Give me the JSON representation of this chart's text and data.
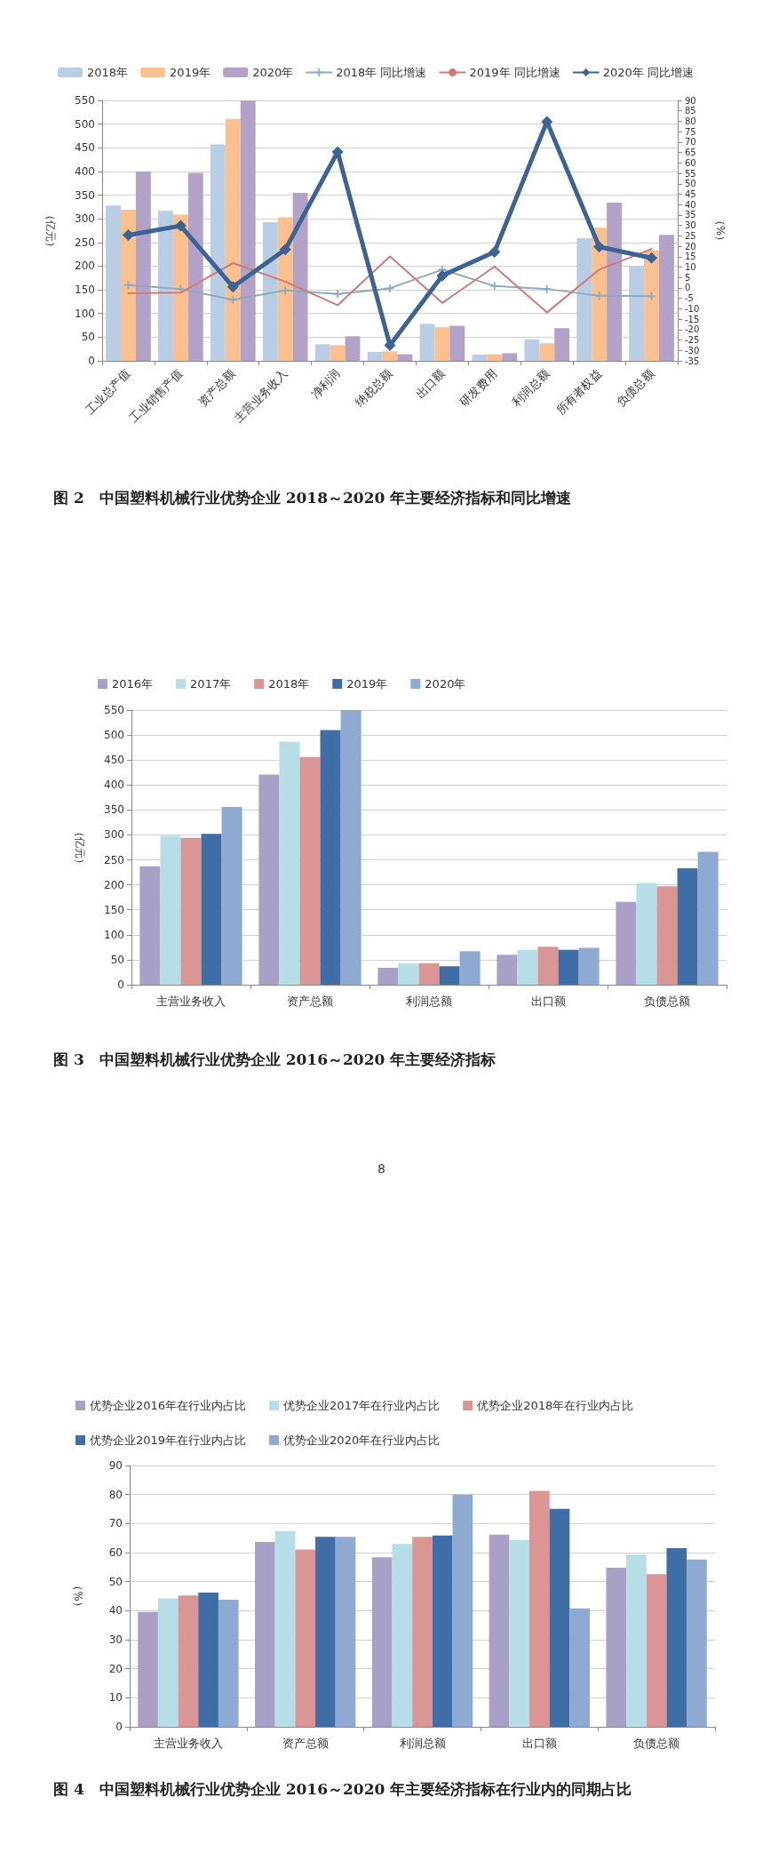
{
  "chart_data": [
    {
      "type": "bar",
      "title": "图 2　中国塑料机械行业优势企业 2018～2020 年主要经济指标和同比增速",
      "ylabel": "（亿元）",
      "y2label": "（%）",
      "categories": [
        "工业总产值",
        "工业销售产值",
        "资产总额",
        "主营业务收入",
        "净利润",
        "纳税总额",
        "出口额",
        "研发费用",
        "利润总额",
        "所有者权益",
        "负债总额"
      ],
      "series": [
        {
          "name": "2018年",
          "color": "#b9cde5",
          "values": [
            328,
            317,
            457,
            293,
            35,
            19,
            78,
            13,
            45,
            259,
            199
          ]
        },
        {
          "name": "2019年",
          "color": "#fac08f",
          "values": [
            319,
            309,
            511,
            303,
            33,
            20,
            71,
            14,
            37,
            281,
            233
          ]
        },
        {
          "name": "2020年",
          "color": "#b3a2c7",
          "values": [
            400,
            397,
            550,
            355,
            52,
            14,
            74,
            16,
            69,
            334,
            266
          ]
        },
        {
          "name": "2018年 同比增速",
          "type": "line",
          "axis": "y2",
          "marker": "cross",
          "color": "#8ea9c1",
          "values": [
            1.4,
            -0.5,
            -5.7,
            -1.2,
            -2.9,
            -0.2,
            8.8,
            0.9,
            -0.5,
            -3.8,
            -4
          ]
        },
        {
          "name": "2019年 同比增速",
          "type": "line",
          "axis": "y2",
          "marker": "none",
          "color": "#d07a78",
          "values": [
            -2.6,
            -2.3,
            11.9,
            3,
            -8.3,
            15.1,
            -7.2,
            10.2,
            -11.8,
            8.8,
            18.7
          ]
        },
        {
          "name": "2020年 同比增速",
          "type": "line",
          "axis": "y2",
          "marker": "diamond",
          "color": "#3d6294",
          "values": [
            25.4,
            29.8,
            0.5,
            18.4,
            65.3,
            -27.5,
            5.9,
            17.3,
            79.8,
            19.7,
            14.4
          ]
        }
      ],
      "ylim": [
        0,
        550
      ],
      "yticks": [
        0,
        50,
        100,
        150,
        200,
        250,
        300,
        350,
        400,
        450,
        500,
        550
      ],
      "y2lim": [
        -35,
        90
      ],
      "y2ticks": [
        -35,
        -30,
        -25,
        -20,
        -15,
        -10,
        -5,
        0,
        5,
        10,
        15,
        20,
        25,
        30,
        35,
        40,
        45,
        50,
        55,
        60,
        65,
        70,
        75,
        80,
        85,
        90
      ],
      "grid": "y",
      "legend": "top"
    },
    {
      "type": "bar",
      "title": "图 3　中国塑料机械行业优势企业 2016～2020 年主要经济指标",
      "ylabel": "（亿元）",
      "annotations": [
        "8"
      ],
      "categories": [
        "主营业务收入",
        "资产总额",
        "利润总额",
        "出口额",
        "负债总额"
      ],
      "series": [
        {
          "name": "2016年",
          "color": "#a9a0c8",
          "values": [
            237,
            421,
            34,
            60,
            166
          ]
        },
        {
          "name": "2017年",
          "color": "#b7dde6",
          "values": [
            298,
            487,
            43,
            70,
            204
          ]
        },
        {
          "name": "2018年",
          "color": "#d99694",
          "values": [
            294,
            456,
            43,
            76,
            197
          ]
        },
        {
          "name": "2019年",
          "color": "#3e6ea5",
          "values": [
            302,
            510,
            37,
            70,
            233
          ]
        },
        {
          "name": "2020年",
          "color": "#8faad2",
          "values": [
            356,
            550,
            67,
            74,
            266
          ]
        }
      ],
      "ylim": [
        0,
        550
      ],
      "yticks": [
        0,
        50,
        100,
        150,
        200,
        250,
        300,
        350,
        400,
        450,
        500,
        550
      ],
      "grid": "y",
      "legend": "top"
    },
    {
      "type": "bar",
      "title": "图 4　中国塑料机械行业优势企业 2016～2020 年主要经济指标在行业内的同期占比",
      "ylabel": "（%）",
      "categories": [
        "主营业务收入",
        "资产总额",
        "利润总额",
        "出口额",
        "负债总额"
      ],
      "series": [
        {
          "name": "优势企业2016年在行业内占比",
          "color": "#a9a0c8",
          "values": [
            39.6,
            63.7,
            58.4,
            66.2,
            54.8
          ]
        },
        {
          "name": "优势企业2017年在行业内占比",
          "color": "#b7dde6",
          "values": [
            44.2,
            67.4,
            63.0,
            64.4,
            59.3
          ]
        },
        {
          "name": "优势企业2018年在行业内占比",
          "color": "#d99694",
          "values": [
            45.2,
            61.1,
            65.4,
            81.3,
            52.6
          ]
        },
        {
          "name": "优势企业2019年在行业内占比",
          "color": "#3e6ea5",
          "values": [
            46.2,
            65.4,
            65.9,
            75.1,
            61.5
          ]
        },
        {
          "name": "优势企业2020年在行业内占比",
          "color": "#8faad2",
          "values": [
            43.8,
            65.4,
            80.0,
            40.8,
            57.6
          ]
        }
      ],
      "ylim": [
        0,
        90
      ],
      "yticks": [
        0,
        10,
        20,
        30,
        40,
        50,
        60,
        70,
        80,
        90
      ],
      "grid": "y",
      "legend": "top"
    }
  ]
}
